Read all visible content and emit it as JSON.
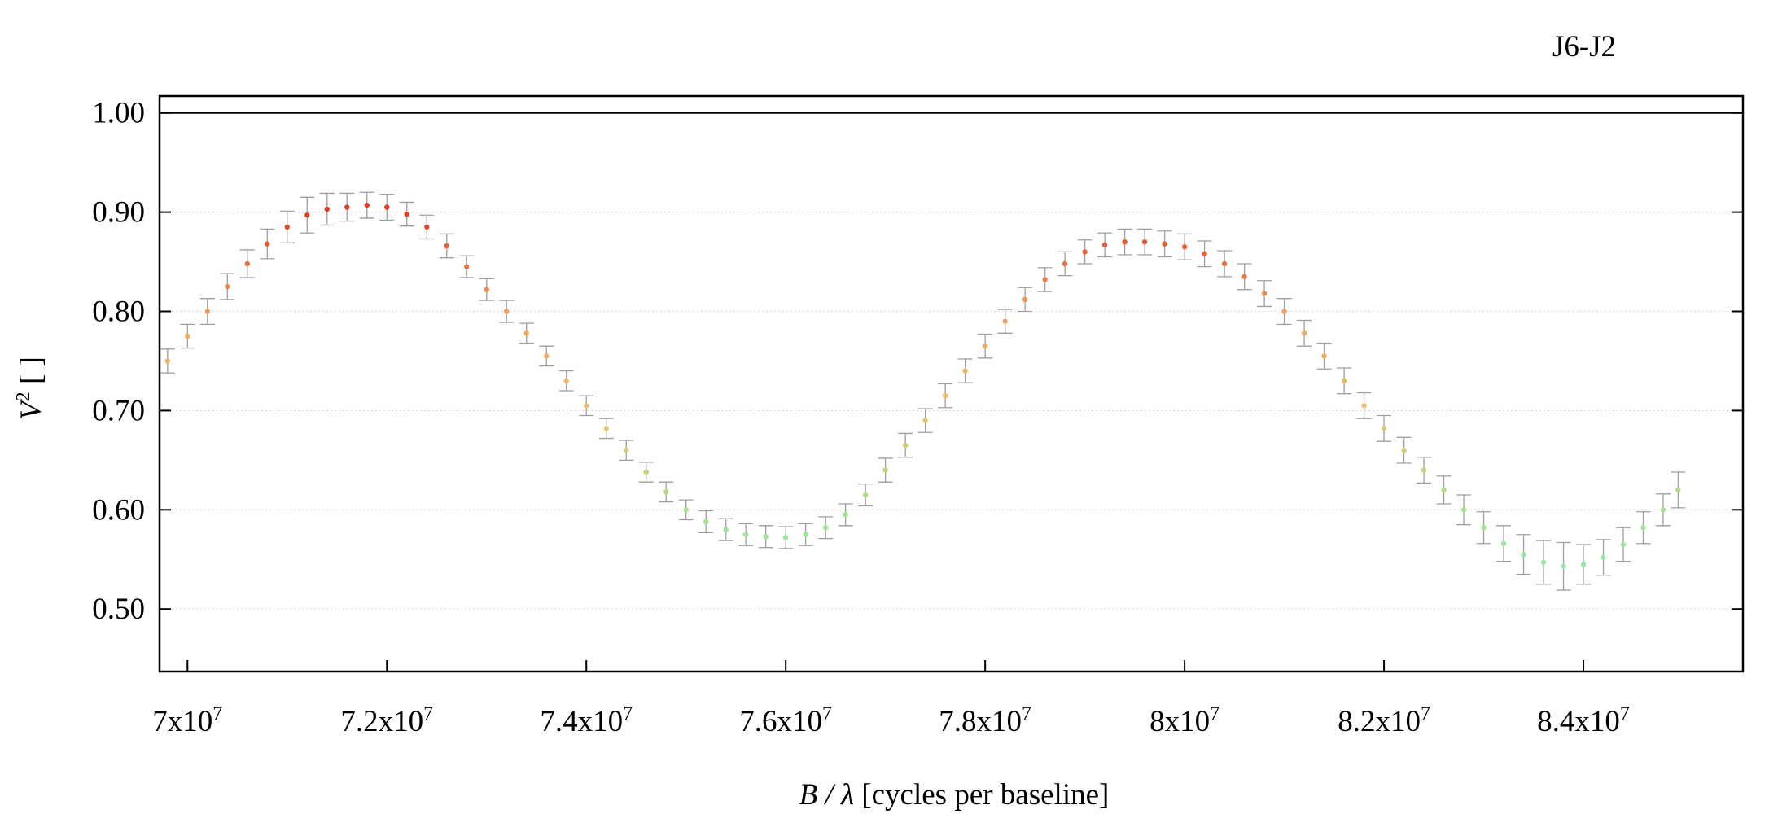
{
  "chart_data": {
    "type": "scatter",
    "title": "J6-J2",
    "xlabel_italic": "B / λ",
    "xlabel_rest": " [cycles per baseline]",
    "ylabel_italic": "V",
    "ylabel_sup": "2",
    "ylabel_rest": " [ ]",
    "xlim": [
      69720000,
      85600000
    ],
    "ylim": [
      0.437,
      1.017
    ],
    "grid": true,
    "reference_line": 1.0,
    "x_ticks": [
      {
        "value": 70000000,
        "mant": "7x10",
        "exp": "7"
      },
      {
        "value": 72000000,
        "mant": "7.2x10",
        "exp": "7"
      },
      {
        "value": 74000000,
        "mant": "7.4x10",
        "exp": "7"
      },
      {
        "value": 76000000,
        "mant": "7.6x10",
        "exp": "7"
      },
      {
        "value": 78000000,
        "mant": "7.8x10",
        "exp": "7"
      },
      {
        "value": 80000000,
        "mant": "8x10",
        "exp": "7"
      },
      {
        "value": 82000000,
        "mant": "8.2x10",
        "exp": "7"
      },
      {
        "value": 84000000,
        "mant": "8.4x10",
        "exp": "7"
      }
    ],
    "y_ticks": [
      {
        "value": 0.5,
        "label": "0.50"
      },
      {
        "value": 0.6,
        "label": "0.60"
      },
      {
        "value": 0.7,
        "label": "0.70"
      },
      {
        "value": 0.8,
        "label": "0.80"
      },
      {
        "value": 0.9,
        "label": "0.90"
      },
      {
        "value": 1.0,
        "label": "1.00"
      }
    ],
    "error_bar_color": "#9e9e9e",
    "color_scale": [
      {
        "v": 0.52,
        "color": "#8fe8b8"
      },
      {
        "v": 0.6,
        "color": "#a6e28a"
      },
      {
        "v": 0.7,
        "color": "#e8c36a"
      },
      {
        "v": 0.8,
        "color": "#f0a060"
      },
      {
        "v": 0.9,
        "color": "#e63c1e"
      }
    ],
    "series": [
      {
        "x": [
          69800000,
          70000000,
          70200000,
          70400000,
          70600000,
          70800000,
          71000000,
          71200000,
          71400000,
          71600000,
          71800000,
          72000000,
          72200000,
          72400000,
          72600000,
          72800000,
          73000000,
          73200000,
          73400000,
          73600000,
          73800000,
          74000000,
          74200000,
          74400000,
          74600000,
          74800000,
          75000000,
          75200000,
          75400000,
          75600000,
          75800000,
          76000000,
          76200000,
          76400000,
          76600000,
          76800000,
          77000000,
          77200000,
          77400000,
          77600000,
          77800000,
          78000000,
          78200000,
          78400000,
          78600000,
          78800000,
          79000000,
          79200000,
          79400000,
          79600000,
          79800000,
          80000000,
          80200000,
          80400000,
          80600000,
          80800000,
          81000000,
          81200000,
          81400000,
          81600000,
          81800000,
          82000000,
          82200000,
          82400000,
          82600000,
          82800000,
          83000000,
          83200000,
          83400000,
          83600000,
          83800000,
          84000000,
          84200000,
          84400000,
          84600000,
          84800000,
          84950000
        ],
        "y": [
          0.75,
          0.775,
          0.8,
          0.825,
          0.848,
          0.868,
          0.885,
          0.897,
          0.903,
          0.905,
          0.907,
          0.905,
          0.898,
          0.885,
          0.866,
          0.845,
          0.822,
          0.8,
          0.778,
          0.755,
          0.73,
          0.705,
          0.682,
          0.66,
          0.638,
          0.618,
          0.6,
          0.588,
          0.58,
          0.575,
          0.573,
          0.572,
          0.575,
          0.582,
          0.595,
          0.615,
          0.64,
          0.665,
          0.69,
          0.715,
          0.74,
          0.765,
          0.79,
          0.812,
          0.832,
          0.848,
          0.86,
          0.867,
          0.87,
          0.87,
          0.868,
          0.865,
          0.858,
          0.848,
          0.835,
          0.818,
          0.8,
          0.778,
          0.755,
          0.73,
          0.705,
          0.682,
          0.66,
          0.64,
          0.62,
          0.6,
          0.582,
          0.566,
          0.555,
          0.547,
          0.543,
          0.545,
          0.552,
          0.565,
          0.582,
          0.6,
          0.62
        ],
        "err": [
          0.012,
          0.012,
          0.013,
          0.013,
          0.014,
          0.015,
          0.016,
          0.018,
          0.016,
          0.014,
          0.013,
          0.013,
          0.012,
          0.012,
          0.012,
          0.011,
          0.011,
          0.011,
          0.01,
          0.01,
          0.01,
          0.01,
          0.01,
          0.01,
          0.01,
          0.01,
          0.01,
          0.011,
          0.011,
          0.011,
          0.011,
          0.011,
          0.011,
          0.011,
          0.011,
          0.011,
          0.012,
          0.012,
          0.012,
          0.012,
          0.012,
          0.012,
          0.012,
          0.012,
          0.012,
          0.012,
          0.012,
          0.012,
          0.013,
          0.013,
          0.013,
          0.013,
          0.013,
          0.013,
          0.013,
          0.013,
          0.013,
          0.013,
          0.013,
          0.013,
          0.013,
          0.013,
          0.013,
          0.013,
          0.014,
          0.015,
          0.016,
          0.018,
          0.02,
          0.022,
          0.024,
          0.02,
          0.018,
          0.017,
          0.016,
          0.016,
          0.018
        ]
      }
    ]
  }
}
